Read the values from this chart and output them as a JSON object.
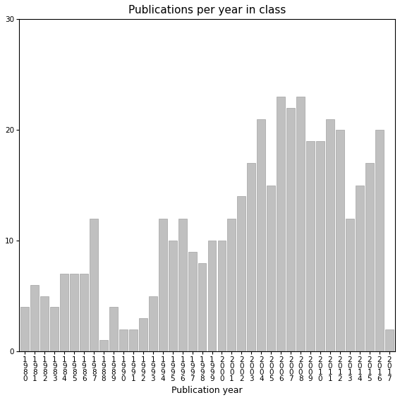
{
  "title": "Publications per year in class",
  "xlabel": "Publication year",
  "years": [
    "1980",
    "1981",
    "1982",
    "1983",
    "1984",
    "1985",
    "1986",
    "1987",
    "1988",
    "1989",
    "1990",
    "1991",
    "1992",
    "1993",
    "1994",
    "1995",
    "1996",
    "1997",
    "1998",
    "1999",
    "2000",
    "2001",
    "2002",
    "2003",
    "2004",
    "2005",
    "2006",
    "2007",
    "2008",
    "2009",
    "2010",
    "2011",
    "2012",
    "2013",
    "2014",
    "2015",
    "2016",
    "2017"
  ],
  "values": [
    4,
    6,
    5,
    4,
    7,
    7,
    7,
    12,
    1,
    4,
    2,
    2,
    3,
    5,
    12,
    10,
    12,
    9,
    8,
    10,
    10,
    12,
    14,
    17,
    21,
    15,
    23,
    22,
    23,
    19,
    19,
    21,
    20,
    12,
    15,
    17,
    20,
    2
  ],
  "bar_color": "#c0c0c0",
  "bar_edgecolor": "#a0a0a0",
  "ylim": [
    0,
    30
  ],
  "yticks": [
    0,
    10,
    20,
    30
  ],
  "bg_color": "#ffffff",
  "title_fontsize": 11,
  "axis_label_fontsize": 9,
  "tick_fontsize": 7.5,
  "annotation_fontsize": 9
}
